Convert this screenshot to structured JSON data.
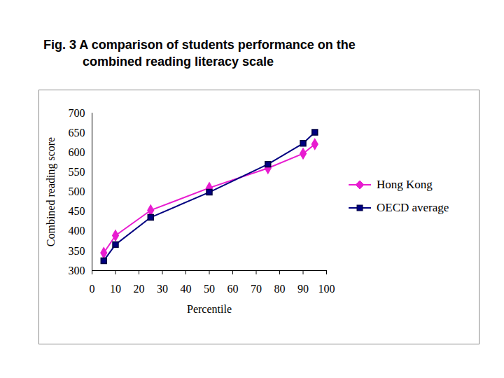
{
  "chart_data": {
    "type": "line",
    "title": "Fig. 3 A comparison of students performance on the combined reading literacy scale",
    "x_label": "Percentile",
    "y_label": "Combined reading score",
    "x": [
      5,
      10,
      25,
      50,
      75,
      90,
      95
    ],
    "series": [
      {
        "name": "Hong Kong",
        "color": "#e81cd0",
        "marker": "diamond",
        "values": [
          345,
          389,
          453,
          510,
          560,
          597,
          621
        ]
      },
      {
        "name": "OECD average",
        "color": "#000080",
        "marker": "square",
        "values": [
          325,
          366,
          435,
          499,
          570,
          623,
          651
        ]
      }
    ],
    "xlim": [
      0,
      100
    ],
    "xticks": [
      0,
      10,
      20,
      30,
      40,
      50,
      60,
      70,
      80,
      90,
      100
    ],
    "ylim": [
      300,
      700
    ],
    "yticks": [
      300,
      350,
      400,
      450,
      500,
      550,
      600,
      650,
      700
    ],
    "grid": false,
    "legend": "right"
  }
}
